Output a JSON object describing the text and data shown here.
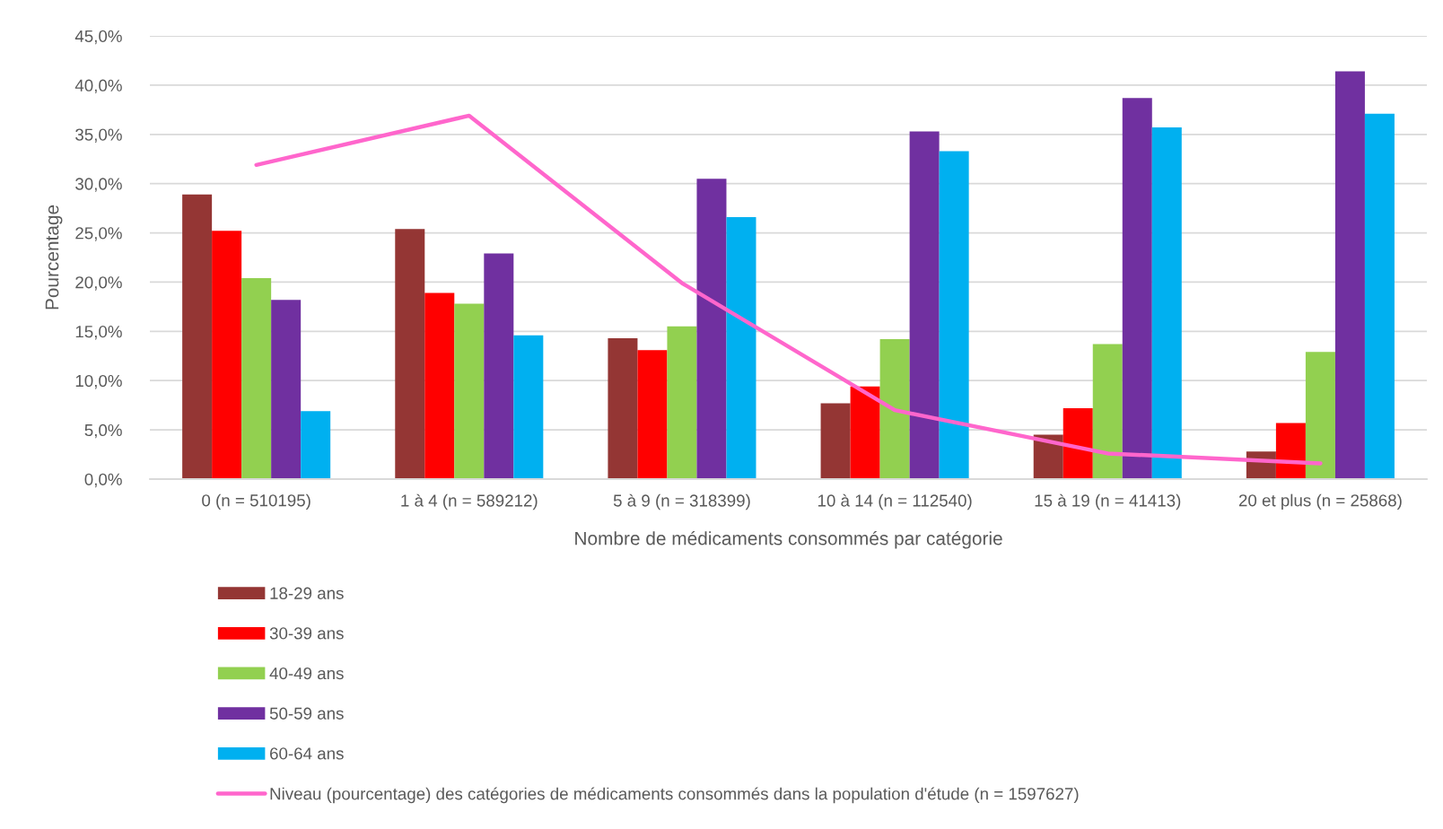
{
  "chart_data": {
    "type": "bar",
    "categories": [
      "0 (n = 510195)",
      "1 à 4 (n = 589212)",
      "5 à 9 (n = 318399)",
      "10 à 14 (n = 112540)",
      "15 à 19 (n = 41413)",
      "20 et plus (n = 25868)"
    ],
    "series": [
      {
        "name": "18-29 ans",
        "color": "#943634",
        "values": [
          28.9,
          25.4,
          14.3,
          7.7,
          4.5,
          2.8
        ]
      },
      {
        "name": "30-39 ans",
        "color": "#ff0000",
        "values": [
          25.2,
          18.9,
          13.1,
          9.4,
          7.2,
          5.7
        ]
      },
      {
        "name": "40-49 ans",
        "color": "#92d050",
        "values": [
          20.4,
          17.8,
          15.5,
          14.2,
          13.7,
          12.9
        ]
      },
      {
        "name": "50-59 ans",
        "color": "#7030a0",
        "values": [
          18.2,
          22.9,
          30.5,
          35.3,
          38.7,
          41.4
        ]
      },
      {
        "name": "60-64 ans",
        "color": "#00b0f0",
        "values": [
          6.9,
          14.6,
          26.6,
          33.3,
          35.7,
          37.1
        ]
      },
      {
        "name": "Niveau (pourcentage) des catégories de médicaments consommés dans la population d'étude (n = 1597627)",
        "type": "line",
        "color": "#ff66cc",
        "values": [
          31.9,
          36.9,
          19.9,
          7.0,
          2.6,
          1.6
        ]
      }
    ],
    "xlabel": "Nombre de médicaments consommés par catégorie",
    "ylabel": "Pourcentage",
    "ylim": [
      0,
      45
    ],
    "yticks": [
      {
        "value": 0,
        "label": "0,0%"
      },
      {
        "value": 5,
        "label": "5,0%"
      },
      {
        "value": 10,
        "label": "10,0%"
      },
      {
        "value": 15,
        "label": "15,0%"
      },
      {
        "value": 20,
        "label": "20,0%"
      },
      {
        "value": 25,
        "label": "25,0%"
      },
      {
        "value": 30,
        "label": "30,0%"
      },
      {
        "value": 35,
        "label": "35,0%"
      },
      {
        "value": 40,
        "label": "40,0%"
      },
      {
        "value": 45,
        "label": "45,0%"
      }
    ],
    "grid": "y",
    "legend": "bottom left"
  }
}
